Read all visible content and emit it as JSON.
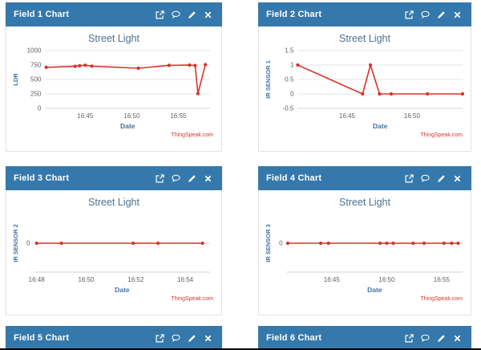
{
  "colors": {
    "header_bg": "#3579ac",
    "header_text": "#ffffff",
    "panel_border": "#e2e2e2",
    "series": "#d9332b",
    "grid": "#e6e6e6",
    "axis_line": "#c9d6df",
    "tick_text": "#606060",
    "axis_title": "#4572a7",
    "chart_title": "#4a7191",
    "watermark": "#d9332b",
    "page_bg": "#ffffff",
    "page_bottom_border": "#000000"
  },
  "header_icons": [
    {
      "name": "open-in-new-icon"
    },
    {
      "name": "comment-icon"
    },
    {
      "name": "edit-icon"
    },
    {
      "name": "close-icon"
    }
  ],
  "panels": [
    {
      "header": "Field 1 Chart",
      "chart_index": 0
    },
    {
      "header": "Field 2 Chart",
      "chart_index": 1
    },
    {
      "header": "Field 3 Chart",
      "chart_index": 2
    },
    {
      "header": "Field 4 Chart",
      "chart_index": 3
    },
    {
      "header": "Field 5 Chart",
      "chart_index": null
    },
    {
      "header": "Field 6 Chart",
      "chart_index": null
    }
  ],
  "chart_data": [
    {
      "type": "line",
      "title": "Street Light",
      "xlabel": "Date",
      "ylabel": "LDR",
      "watermark": "ThingSpeak.com",
      "ylim": [
        0,
        1000
      ],
      "yticks": [
        0,
        250,
        500,
        750,
        1000
      ],
      "x_unit": "minutes after 16:00",
      "xlim": [
        40.7,
        58.4
      ],
      "xticks": [
        {
          "t": 45,
          "label": "16:45"
        },
        {
          "t": 50,
          "label": "16:50"
        },
        {
          "t": 55,
          "label": "16:55"
        }
      ],
      "points": [
        [
          40.8,
          710
        ],
        [
          43.9,
          728
        ],
        [
          44.4,
          738
        ],
        [
          45.0,
          747
        ],
        [
          45.7,
          731
        ],
        [
          50.7,
          694
        ],
        [
          54.0,
          744
        ],
        [
          56.2,
          749
        ],
        [
          56.8,
          741
        ],
        [
          57.1,
          254
        ],
        [
          57.9,
          757
        ]
      ]
    },
    {
      "type": "line",
      "title": "Street Light",
      "xlabel": "Date",
      "ylabel": "IR SENSOR 1",
      "watermark": "ThingSpeak.com",
      "ylim": [
        -0.5,
        1.5
      ],
      "yticks": [
        -0.5,
        0,
        0.5,
        1,
        1.5
      ],
      "x_unit": "minutes after 16:00",
      "xlim": [
        41.2,
        53.9
      ],
      "xticks": [
        {
          "t": 45,
          "label": "16:45"
        },
        {
          "t": 50,
          "label": "16:50"
        }
      ],
      "points": [
        [
          41.2,
          1
        ],
        [
          46.2,
          0
        ],
        [
          46.8,
          1
        ],
        [
          47.5,
          0
        ],
        [
          48.4,
          0
        ],
        [
          51.2,
          0
        ],
        [
          53.9,
          0
        ]
      ]
    },
    {
      "type": "line",
      "title": "Street Light",
      "xlabel": "Date",
      "ylabel": "IR SENSOR 2",
      "watermark": "ThingSpeak.com",
      "ylim": [
        -1,
        1
      ],
      "yticks": [
        0
      ],
      "x_unit": "minutes after 16:00",
      "xlim": [
        47.9,
        55.0
      ],
      "xticks": [
        {
          "t": 48,
          "label": "16:48"
        },
        {
          "t": 50,
          "label": "16:50"
        },
        {
          "t": 52,
          "label": "16:52"
        },
        {
          "t": 54,
          "label": "16:54"
        }
      ],
      "points": [
        [
          48.0,
          0
        ],
        [
          49.0,
          0
        ],
        [
          51.9,
          0
        ],
        [
          52.9,
          0
        ],
        [
          54.7,
          0
        ]
      ]
    },
    {
      "type": "line",
      "title": "Street Light",
      "xlabel": "Date",
      "ylabel": "IR SENSOR 3",
      "watermark": "ThingSpeak.com",
      "ylim": [
        -1,
        1
      ],
      "yticks": [
        0
      ],
      "x_unit": "minutes after 16:00",
      "xlim": [
        40.9,
        56.9
      ],
      "xticks": [
        {
          "t": 45,
          "label": "16:45"
        },
        {
          "t": 50,
          "label": "16:50"
        },
        {
          "t": 55,
          "label": "16:55"
        }
      ],
      "points": [
        [
          41.0,
          0
        ],
        [
          44.0,
          0
        ],
        [
          44.7,
          0
        ],
        [
          49.4,
          0
        ],
        [
          50.0,
          0
        ],
        [
          50.6,
          0
        ],
        [
          52.4,
          0
        ],
        [
          53.4,
          0
        ],
        [
          55.2,
          0
        ],
        [
          55.9,
          0
        ],
        [
          56.5,
          0
        ]
      ]
    }
  ]
}
